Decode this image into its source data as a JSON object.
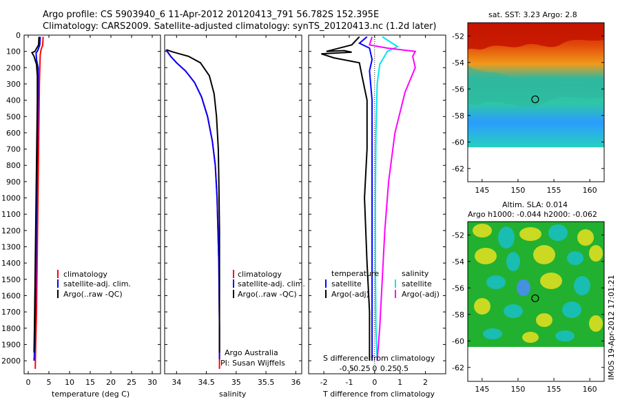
{
  "header": {
    "line1": "Argo profile: CS 5903940_6 11-Apr-2012 20120413_791 56.782S 152.395E",
    "line2": "Climatology: CARS2009. Satellite-adjusted climatology: synTS_20120413.nc (1.2d later)"
  },
  "side_stamp": "IMOS 19-Apr-2012 17:01:21",
  "colors": {
    "climatology": "#ff0000",
    "satellite": "#0000ff",
    "argo": "#000000",
    "satellite_salinity": "#00e5ee",
    "argo_salinity": "#ff00ff"
  },
  "legends": {
    "temperature": [
      "climatology",
      "satellite-adj. clim.",
      "Argo(..raw -QC)"
    ],
    "salinity": [
      "climatology",
      "satellite-adj. clim.",
      "Argo(..raw -QC)"
    ],
    "difference": {
      "temperature_heading": "temperature",
      "salinity_heading": "salinity",
      "t_items": [
        "satellite",
        "Argo(-adj)"
      ],
      "s_items": [
        "satellite",
        "Argo(-adj)"
      ]
    }
  },
  "annotations": {
    "argo_australia": "Argo Australia",
    "pi": "PI: Susan Wijffels"
  },
  "maps": {
    "sst_title": "sat. SST: 3.23 Argo: 2.8",
    "sla_title1": "Altim. SLA: 0.014",
    "sla_title2": "Argo h1000: -0.044 h2000: -0.062",
    "lat_ticks": [
      "-52",
      "-54",
      "-56",
      "-58",
      "-60",
      "-62"
    ],
    "lon_ticks": [
      "145",
      "150",
      "155",
      "160"
    ]
  },
  "chart_data": [
    {
      "type": "line",
      "id": "temperature",
      "xlabel": "temperature (deg C)",
      "ylabel": "",
      "xlim": [
        -1,
        32
      ],
      "ylim": [
        2080,
        0
      ],
      "xticks": [
        0,
        5,
        10,
        15,
        20,
        25,
        30
      ],
      "yticks": [
        0,
        100,
        200,
        300,
        400,
        500,
        600,
        700,
        800,
        900,
        1000,
        1100,
        1200,
        1300,
        1400,
        1500,
        1600,
        1700,
        1800,
        1900,
        2000
      ],
      "series": [
        {
          "name": "climatology",
          "color": "#ff0000",
          "points": [
            [
              3.6,
              10
            ],
            [
              3.5,
              60
            ],
            [
              3.1,
              90
            ],
            [
              2.9,
              120
            ],
            [
              2.8,
              200
            ],
            [
              2.7,
              300
            ],
            [
              2.6,
              500
            ],
            [
              2.5,
              700
            ],
            [
              2.4,
              900
            ],
            [
              2.3,
              1100
            ],
            [
              2.2,
              1300
            ],
            [
              2.1,
              1500
            ],
            [
              2.0,
              1700
            ],
            [
              1.8,
              1900
            ],
            [
              1.7,
              2050
            ]
          ]
        },
        {
          "name": "satellite-adj. clim.",
          "color": "#0000ff",
          "points": [
            [
              2.9,
              10
            ],
            [
              2.8,
              60
            ],
            [
              2.3,
              95
            ],
            [
              1.9,
              110
            ],
            [
              2.0,
              150
            ],
            [
              2.4,
              200
            ],
            [
              2.4,
              300
            ],
            [
              2.3,
              500
            ],
            [
              2.2,
              700
            ],
            [
              2.1,
              900
            ],
            [
              2.0,
              1100
            ],
            [
              1.9,
              1300
            ],
            [
              1.8,
              1500
            ],
            [
              1.7,
              1700
            ],
            [
              1.6,
              1900
            ],
            [
              1.4,
              2000
            ]
          ]
        },
        {
          "name": "Argo(..raw -QC)",
          "color": "#000000",
          "points": [
            [
              2.6,
              10
            ],
            [
              2.5,
              60
            ],
            [
              1.6,
              100
            ],
            [
              0.9,
              108
            ],
            [
              1.4,
              130
            ],
            [
              2.0,
              180
            ],
            [
              2.2,
              250
            ],
            [
              2.2,
              400
            ],
            [
              2.1,
              600
            ],
            [
              2.0,
              800
            ],
            [
              1.9,
              1000
            ],
            [
              1.8,
              1200
            ],
            [
              1.7,
              1400
            ],
            [
              1.6,
              1600
            ],
            [
              1.5,
              1800
            ],
            [
              1.4,
              1950
            ]
          ]
        }
      ]
    },
    {
      "type": "line",
      "id": "salinity",
      "xlabel": "salinity",
      "ylabel": "",
      "xlim": [
        33.8,
        36.1
      ],
      "ylim": [
        2080,
        0
      ],
      "xticks": [
        34,
        34.5,
        35,
        35.5,
        36
      ],
      "series": [
        {
          "name": "climatology",
          "color": "#ff0000",
          "points": [
            [
              33.83,
              90
            ],
            [
              33.9,
              130
            ],
            [
              34.0,
              170
            ],
            [
              34.15,
              220
            ],
            [
              34.3,
              290
            ],
            [
              34.42,
              380
            ],
            [
              34.52,
              500
            ],
            [
              34.6,
              650
            ],
            [
              34.65,
              800
            ],
            [
              34.68,
              1000
            ],
            [
              34.71,
              1400
            ],
            [
              34.72,
              1800
            ],
            [
              34.72,
              2050
            ]
          ]
        },
        {
          "name": "satellite-adj. clim.",
          "color": "#0000ff",
          "points": [
            [
              33.82,
              90
            ],
            [
              33.9,
              130
            ],
            [
              34.0,
              170
            ],
            [
              34.15,
              220
            ],
            [
              34.3,
              290
            ],
            [
              34.42,
              380
            ],
            [
              34.52,
              500
            ],
            [
              34.6,
              650
            ],
            [
              34.65,
              800
            ],
            [
              34.68,
              1000
            ],
            [
              34.71,
              1400
            ],
            [
              34.72,
              1800
            ],
            [
              34.72,
              1990
            ]
          ]
        },
        {
          "name": "Argo(..raw -QC)",
          "color": "#000000",
          "points": [
            [
              33.83,
              90
            ],
            [
              33.95,
              105
            ],
            [
              34.2,
              130
            ],
            [
              34.4,
              170
            ],
            [
              34.55,
              250
            ],
            [
              34.63,
              360
            ],
            [
              34.67,
              500
            ],
            [
              34.7,
              700
            ],
            [
              34.71,
              900
            ],
            [
              34.72,
              1200
            ],
            [
              34.72,
              1600
            ],
            [
              34.72,
              1950
            ]
          ]
        }
      ]
    },
    {
      "type": "line",
      "id": "difference",
      "xlabel": "T difference from climatology",
      "x2label": "S difference from climatology",
      "xlim": [
        -2.6,
        2.8
      ],
      "ylim": [
        2080,
        0
      ],
      "xticks": [
        -2,
        -1,
        0,
        1,
        2
      ],
      "x2ticks": [
        -0.5,
        -0.25,
        0,
        0.25,
        0.5
      ],
      "series": [
        {
          "name": "satellite",
          "group": "temperature",
          "color": "#0000ff",
          "points": [
            [
              -0.3,
              10
            ],
            [
              -0.6,
              50
            ],
            [
              -0.2,
              80
            ],
            [
              -0.1,
              150
            ],
            [
              -0.2,
              220
            ],
            [
              -0.1,
              400
            ],
            [
              -0.1,
              800
            ],
            [
              -0.1,
              1200
            ],
            [
              -0.1,
              1600
            ],
            [
              -0.1,
              2000
            ]
          ]
        },
        {
          "name": "Argo(-adj)",
          "group": "temperature",
          "color": "#000000",
          "points": [
            [
              -0.6,
              10
            ],
            [
              -0.9,
              60
            ],
            [
              -1.9,
              100
            ],
            [
              -1.2,
              95
            ],
            [
              -0.9,
              105
            ],
            [
              -2.1,
              115
            ],
            [
              -1.6,
              140
            ],
            [
              -0.6,
              170
            ],
            [
              -0.5,
              250
            ],
            [
              -0.3,
              400
            ],
            [
              -0.3,
              700
            ],
            [
              -0.4,
              1000
            ],
            [
              -0.3,
              1400
            ],
            [
              -0.2,
              1700
            ],
            [
              -0.2,
              2000
            ]
          ]
        },
        {
          "name": "satellite",
          "group": "salinity",
          "color": "#00e5ee",
          "points": [
            [
              0.3,
              10
            ],
            [
              0.9,
              70
            ],
            [
              0.5,
              100
            ],
            [
              0.2,
              180
            ],
            [
              0.1,
              300
            ],
            [
              0.05,
              600
            ],
            [
              0.03,
              1000
            ],
            [
              0.03,
              1400
            ],
            [
              0.05,
              1800
            ],
            [
              0.1,
              2000
            ]
          ]
        },
        {
          "name": "Argo(-adj)",
          "group": "salinity",
          "color": "#ff00ff",
          "points": [
            [
              -0.1,
              10
            ],
            [
              -0.2,
              60
            ],
            [
              0.5,
              80
            ],
            [
              1.6,
              100
            ],
            [
              1.5,
              130
            ],
            [
              1.6,
              200
            ],
            [
              1.2,
              350
            ],
            [
              0.8,
              600
            ],
            [
              0.55,
              900
            ],
            [
              0.4,
              1200
            ],
            [
              0.3,
              1500
            ],
            [
              0.2,
              1800
            ],
            [
              0.1,
              2000
            ]
          ]
        }
      ]
    }
  ]
}
